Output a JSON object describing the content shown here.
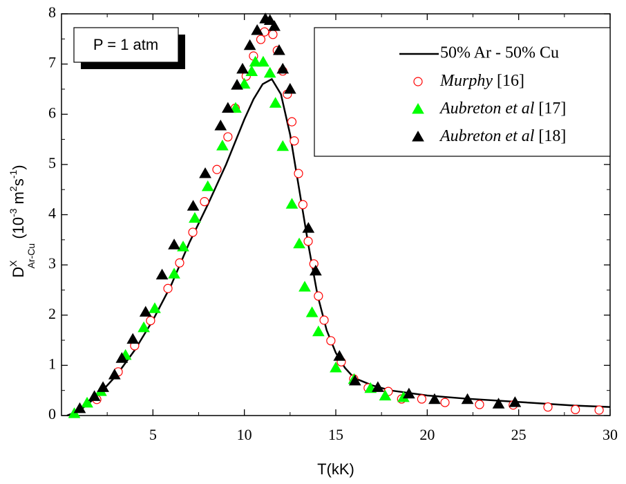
{
  "chart_data": {
    "type": "scatter",
    "x_label": "T(kK)",
    "y_label": [
      {
        "text": "D",
        "style": "normal"
      },
      {
        "text": "X",
        "style": "sup"
      },
      {
        "text": "Ar-Cu",
        "style": "sub"
      },
      {
        "text": " (10",
        "style": "normal"
      },
      {
        "text": "-3",
        "style": "sup"
      },
      {
        "text": " m",
        "style": "normal"
      },
      {
        "text": "2",
        "style": "sup"
      },
      {
        "text": "s",
        "style": "normal"
      },
      {
        "text": "-1",
        "style": "sup"
      },
      {
        "text": ")",
        "style": "normal"
      }
    ],
    "annotation": "P = 1 atm",
    "legend": "upper right",
    "xlim": [
      0,
      30
    ],
    "ylim": [
      0,
      8
    ],
    "xticks": [
      5,
      10,
      15,
      20,
      25,
      30
    ],
    "yticks": [
      0,
      1,
      2,
      3,
      4,
      5,
      6,
      7,
      8
    ],
    "series": [
      {
        "name": "50% Ar - 50% Cu",
        "color": "#000000",
        "marker": "line",
        "filled": true,
        "x": [
          0.3,
          1,
          2,
          3,
          4,
          5,
          6,
          7,
          8,
          9,
          10,
          10.5,
          11,
          11.5,
          12,
          12.5,
          13,
          13.5,
          14,
          14.5,
          15,
          15.5,
          16,
          17,
          18,
          20,
          22,
          25,
          28,
          30
        ],
        "values": [
          0,
          0.1,
          0.4,
          0.8,
          1.3,
          1.9,
          2.6,
          3.45,
          4.2,
          5.0,
          5.9,
          6.3,
          6.6,
          6.7,
          6.4,
          5.6,
          4.5,
          3.4,
          2.4,
          1.7,
          1.25,
          0.95,
          0.75,
          0.6,
          0.5,
          0.4,
          0.34,
          0.27,
          0.2,
          0.17
        ]
      },
      {
        "name": "Murphy [16]",
        "color": "#ff0000",
        "marker": "circle",
        "filled": false,
        "x": [
          1.93,
          3.1,
          4.0,
          4.87,
          5.82,
          6.46,
          7.18,
          7.82,
          8.5,
          9.1,
          9.5,
          10.1,
          10.5,
          10.9,
          11.1,
          11.56,
          11.8,
          12.1,
          12.35,
          12.6,
          12.73,
          12.96,
          13.2,
          13.49,
          13.8,
          14.05,
          14.36,
          14.73,
          15.3,
          15.98,
          16.77,
          17.87,
          18.6,
          19.7,
          20.97,
          22.86,
          24.7,
          26.6,
          28.1,
          29.4
        ],
        "values": [
          0.32,
          0.87,
          1.39,
          1.89,
          2.53,
          3.04,
          3.65,
          4.26,
          4.9,
          5.55,
          6.12,
          6.76,
          7.16,
          7.49,
          7.64,
          7.59,
          7.27,
          6.86,
          6.4,
          5.85,
          5.47,
          4.82,
          4.2,
          3.47,
          3.02,
          2.38,
          1.9,
          1.49,
          1.07,
          0.73,
          0.55,
          0.48,
          0.33,
          0.33,
          0.26,
          0.22,
          0.21,
          0.17,
          0.12,
          0.11
        ]
      },
      {
        "name": "Aubreton et al [17]",
        "color": "#00ff00",
        "marker": "triangle",
        "filled": true,
        "x": [
          0.7,
          1.4,
          2.15,
          3.5,
          4.5,
          5.1,
          6.16,
          6.65,
          7.29,
          8.0,
          8.8,
          9.52,
          10.0,
          10.4,
          10.6,
          11.03,
          11.4,
          11.7,
          12.1,
          12.6,
          13.0,
          13.3,
          13.7,
          14.05,
          15.0,
          16.0,
          16.9,
          17.7,
          18.7
        ],
        "values": [
          0.04,
          0.25,
          0.48,
          1.2,
          1.75,
          2.13,
          2.82,
          3.36,
          3.93,
          4.56,
          5.37,
          6.12,
          6.6,
          6.85,
          7.04,
          7.04,
          6.82,
          6.22,
          5.36,
          4.21,
          3.42,
          2.56,
          2.05,
          1.67,
          0.95,
          0.72,
          0.54,
          0.39,
          0.36
        ]
      },
      {
        "name": "Aubreton et al [18]",
        "color": "#000000",
        "marker": "triangle",
        "filled": true,
        "x": [
          1.0,
          1.8,
          2.27,
          2.9,
          3.3,
          3.9,
          4.6,
          5.5,
          6.16,
          7.2,
          7.86,
          8.7,
          9.1,
          9.6,
          9.9,
          10.3,
          10.7,
          11.15,
          11.4,
          11.64,
          11.9,
          12.1,
          12.5,
          13.5,
          13.9,
          15.2,
          16.05,
          17.3,
          19.0,
          20.4,
          22.2,
          23.9,
          24.8
        ],
        "values": [
          0.14,
          0.38,
          0.56,
          0.81,
          1.14,
          1.52,
          2.06,
          2.8,
          3.4,
          4.17,
          4.82,
          5.77,
          6.12,
          6.58,
          6.9,
          7.37,
          7.67,
          7.9,
          7.87,
          7.75,
          7.27,
          6.9,
          6.5,
          3.73,
          2.88,
          1.18,
          0.69,
          0.56,
          0.43,
          0.32,
          0.32,
          0.23,
          0.26
        ]
      }
    ]
  }
}
